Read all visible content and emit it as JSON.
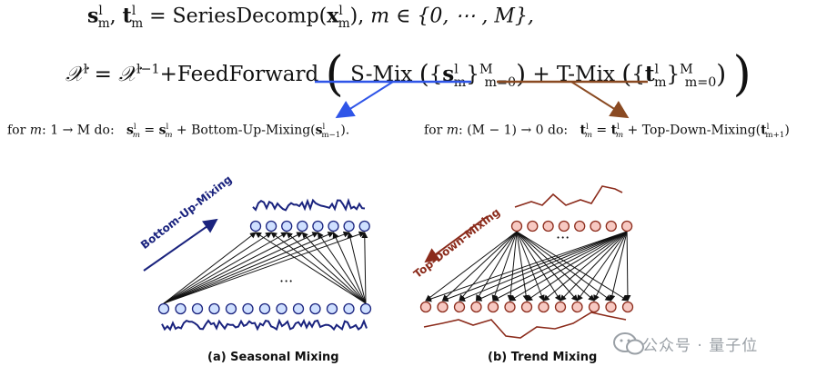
{
  "equations": {
    "line1": {
      "lhs_s": "s",
      "lhs_t": "t",
      "func": "SeriesDecomp",
      "arg": "x",
      "cond": "m ∈ {0, ⋯ , M},",
      "sup_l": "l",
      "sub_m": "m"
    },
    "line2": {
      "lhs": "𝒳",
      "prev": "𝒳",
      "sup_prev": "l−1",
      "plus": "+",
      "ff": "FeedForward",
      "smix": "S-Mix",
      "tmix": "T-Mix",
      "s_sym": "s",
      "t_sym": "t",
      "range_sup": "M",
      "range_sub": "m=0"
    }
  },
  "loops": {
    "seasonal": {
      "prefix": "for",
      "var": "m",
      "range": ": 1 → M",
      "do": "do:",
      "update": "Bottom-Up-Mixing",
      "index": "m−1"
    },
    "trend": {
      "prefix": "for",
      "var": "m",
      "range": ": (M − 1) → 0",
      "do": "do:",
      "update": "Top-Down-Mixing",
      "index": "m+1"
    }
  },
  "panels": {
    "seasonal": {
      "caption": "(a) Seasonal Mixing",
      "arrow_label": "Bottom-Up-Mixing",
      "ellipsis": "···",
      "color": "#1a237e"
    },
    "trend": {
      "caption": "(b) Trend Mixing",
      "arrow_label": "Top-Down-Mixing",
      "ellipsis": "···",
      "color": "#8b2b1b"
    }
  },
  "colors": {
    "blue_arrow": "#2f55e8",
    "brown_arrow": "#8a4a22",
    "node_blue_fill": "#cfe0ff",
    "node_red_fill": "#f7c9c2"
  },
  "watermark": {
    "text": "公众号 · 量子位",
    "icon": "wechat-icon"
  }
}
